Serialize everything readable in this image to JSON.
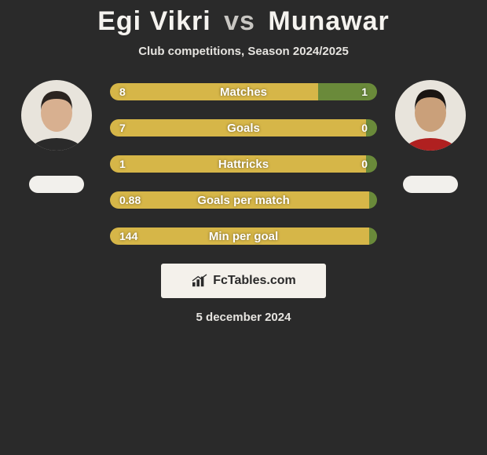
{
  "title": {
    "player1": "Egi Vikri",
    "vs": "vs",
    "player2": "Munawar"
  },
  "subtitle": "Club competitions, Season 2024/2025",
  "colors": {
    "left_bar": "#d6b648",
    "right_bar": "#6a8a3a",
    "bg": "#2a2a2a",
    "brand_bg": "#f4f1eb"
  },
  "stats": [
    {
      "label": "Matches",
      "left_val": "8",
      "right_val": "1",
      "left_pct": 78,
      "right_pct": 22
    },
    {
      "label": "Goals",
      "left_val": "7",
      "right_val": "0",
      "left_pct": 96,
      "right_pct": 4
    },
    {
      "label": "Hattricks",
      "left_val": "1",
      "right_val": "0",
      "left_pct": 96,
      "right_pct": 4
    },
    {
      "label": "Goals per match",
      "left_val": "0.88",
      "right_val": "",
      "left_pct": 97,
      "right_pct": 3
    },
    {
      "label": "Min per goal",
      "left_val": "144",
      "right_val": "",
      "left_pct": 97,
      "right_pct": 3
    }
  ],
  "brand": "FcTables.com",
  "date": "5 december 2024",
  "avatars": {
    "left": {
      "skin": "#d8b090",
      "hair": "#2b2420",
      "shirt": "#2a2a2a"
    },
    "right": {
      "skin": "#caa07a",
      "hair": "#1a1512",
      "shirt": "#b02020"
    }
  }
}
